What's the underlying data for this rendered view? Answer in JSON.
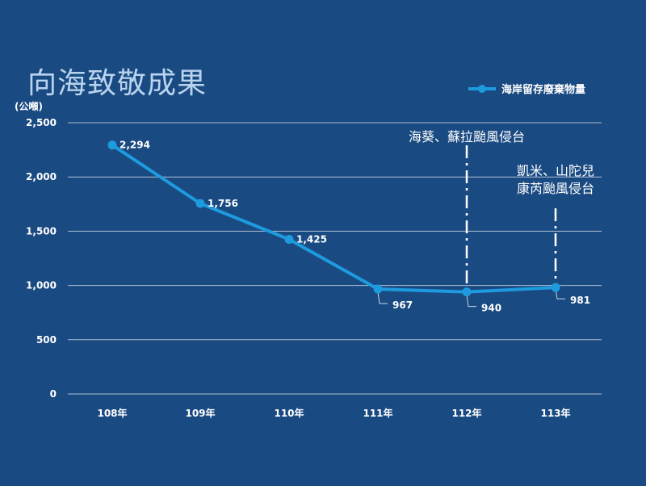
{
  "chart_data": {
    "type": "line",
    "title": "向海致敬成果",
    "ylabel": "(公噸)",
    "categories": [
      "108年",
      "109年",
      "110年",
      "111年",
      "112年",
      "113年"
    ],
    "series": [
      {
        "name": "海岸留存廢棄物量",
        "values": [
          2294,
          1756,
          1425,
          967,
          940,
          981
        ],
        "labels": [
          "2,294",
          "1,756",
          "1,425",
          "967",
          "940",
          "981"
        ]
      }
    ],
    "ylim": [
      0,
      2500
    ],
    "yticks": [
      0,
      500,
      1000,
      1500,
      2000,
      2500
    ],
    "ytick_labels": [
      "0",
      "500",
      "1,000",
      "1,500",
      "2,000",
      "2,500"
    ],
    "grid": true,
    "legend_position": "top-right",
    "line_color": "#1e9ade",
    "annotations": [
      {
        "category": "112年",
        "lines": [
          "海葵、蘇拉颱風侵台"
        ]
      },
      {
        "category": "113年",
        "lines": [
          "凱米、山陀兒",
          "康芮颱風侵台"
        ]
      }
    ]
  }
}
